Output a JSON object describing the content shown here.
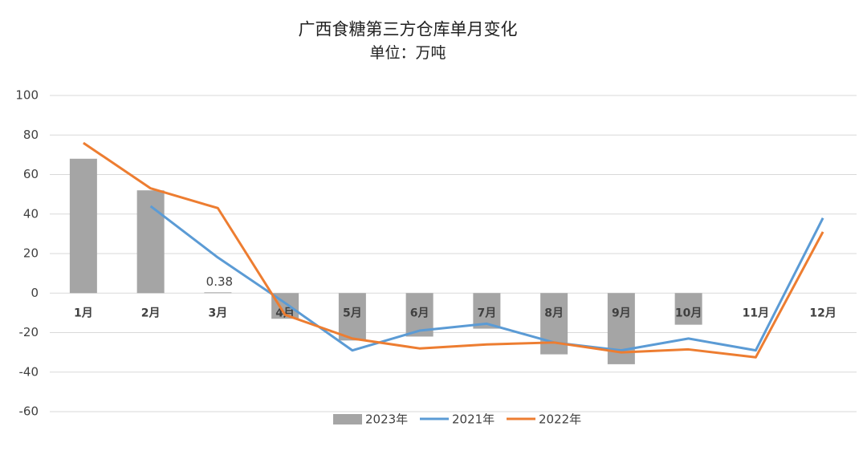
{
  "chart_data": {
    "type": "bar+line",
    "title": "广西食糖第三方仓库单月变化",
    "subtitle": "单位：万吨",
    "categories": [
      "1月",
      "2月",
      "3月",
      "4月",
      "5月",
      "6月",
      "7月",
      "8月",
      "9月",
      "10月",
      "11月",
      "12月"
    ],
    "series": [
      {
        "name": "2023年",
        "type": "bar",
        "color": "#a5a5a5",
        "values": [
          68,
          52,
          0.38,
          -13,
          -24,
          -22,
          -18,
          -31,
          -36,
          -16,
          null,
          null
        ],
        "value_labels": [
          null,
          null,
          "0.38",
          null,
          null,
          null,
          null,
          null,
          null,
          null,
          null,
          null
        ]
      },
      {
        "name": "2021年",
        "type": "line",
        "color": "#5b9bd5",
        "values": [
          null,
          44,
          18,
          -5,
          -29,
          -19,
          -15.5,
          -25,
          -29,
          -23,
          -29,
          38
        ]
      },
      {
        "name": "2022年",
        "type": "line",
        "color": "#ed7d31",
        "values": [
          76,
          53,
          43,
          -11,
          -23,
          -28,
          -26,
          -25,
          -30,
          -28.5,
          -32.5,
          31
        ]
      }
    ],
    "ylim": [
      -60,
      100
    ],
    "yticks": [
      -60,
      -40,
      -20,
      0,
      20,
      40,
      60,
      80,
      100
    ],
    "grid": true,
    "legend": "bottom"
  }
}
